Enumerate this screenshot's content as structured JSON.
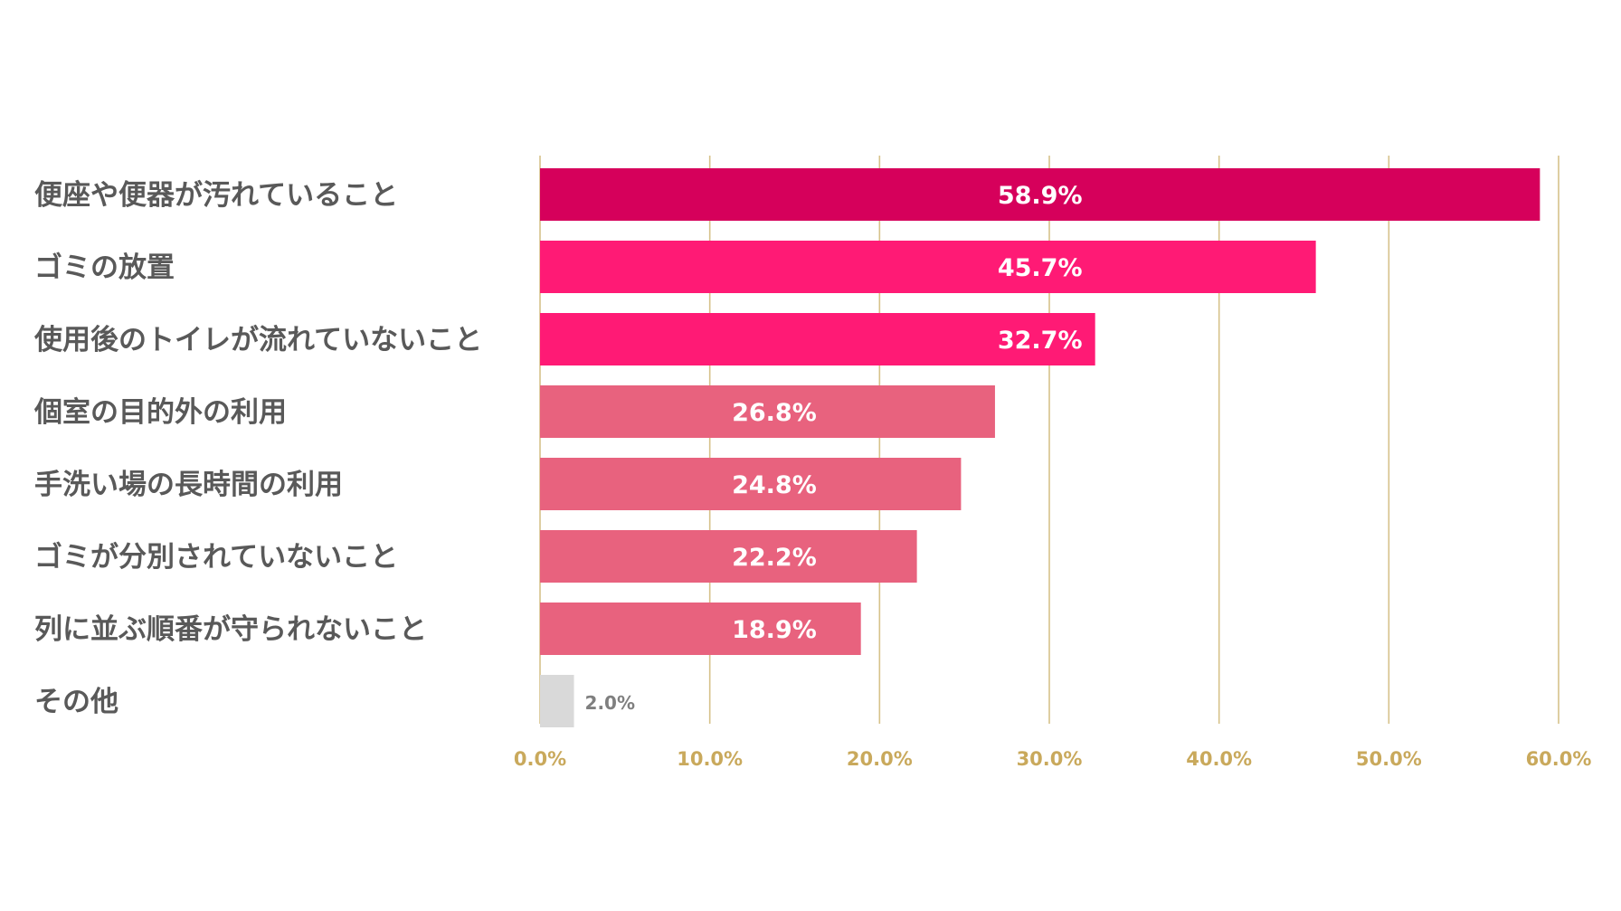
{
  "chart_data": {
    "type": "bar",
    "orientation": "horizontal",
    "title": "",
    "xlabel": "",
    "ylabel": "",
    "xlim": [
      0,
      60
    ],
    "tick_values": [
      0,
      10,
      20,
      30,
      40,
      50,
      60
    ],
    "tick_labels": [
      "0.0%",
      "10.0%",
      "20.0%",
      "30.0%",
      "40.0%",
      "50.0%",
      "60.0%"
    ],
    "grid": true,
    "legend": "none",
    "categories": [
      "便座や便器が汚れていること",
      "ゴミの放置",
      "使用後のトイレが流れていないこと",
      "個室の目的外の利用",
      "手洗い場の長時間の利用",
      "ゴミが分別されていないこと",
      "列に並ぶ順番が守られないこと",
      "その他"
    ],
    "values": [
      58.9,
      45.7,
      32.7,
      26.8,
      24.8,
      22.2,
      18.9,
      2.0
    ],
    "data_labels": [
      "58.9%",
      "45.7%",
      "32.7%",
      "26.8%",
      "24.8%",
      "22.2%",
      "18.9%",
      "2.0%"
    ],
    "bar_colors": [
      "#d6005b",
      "#ff1a75",
      "#ff1a75",
      "#e8627e",
      "#e8627e",
      "#e8627e",
      "#e8627e",
      "#d9d9d9"
    ],
    "colors": {
      "category_text": "#595959",
      "tick_text": "#c9a95c",
      "gridline": "#d6c28a",
      "inside_label": "#ffffff",
      "outside_label": "#7f7f7f"
    }
  }
}
